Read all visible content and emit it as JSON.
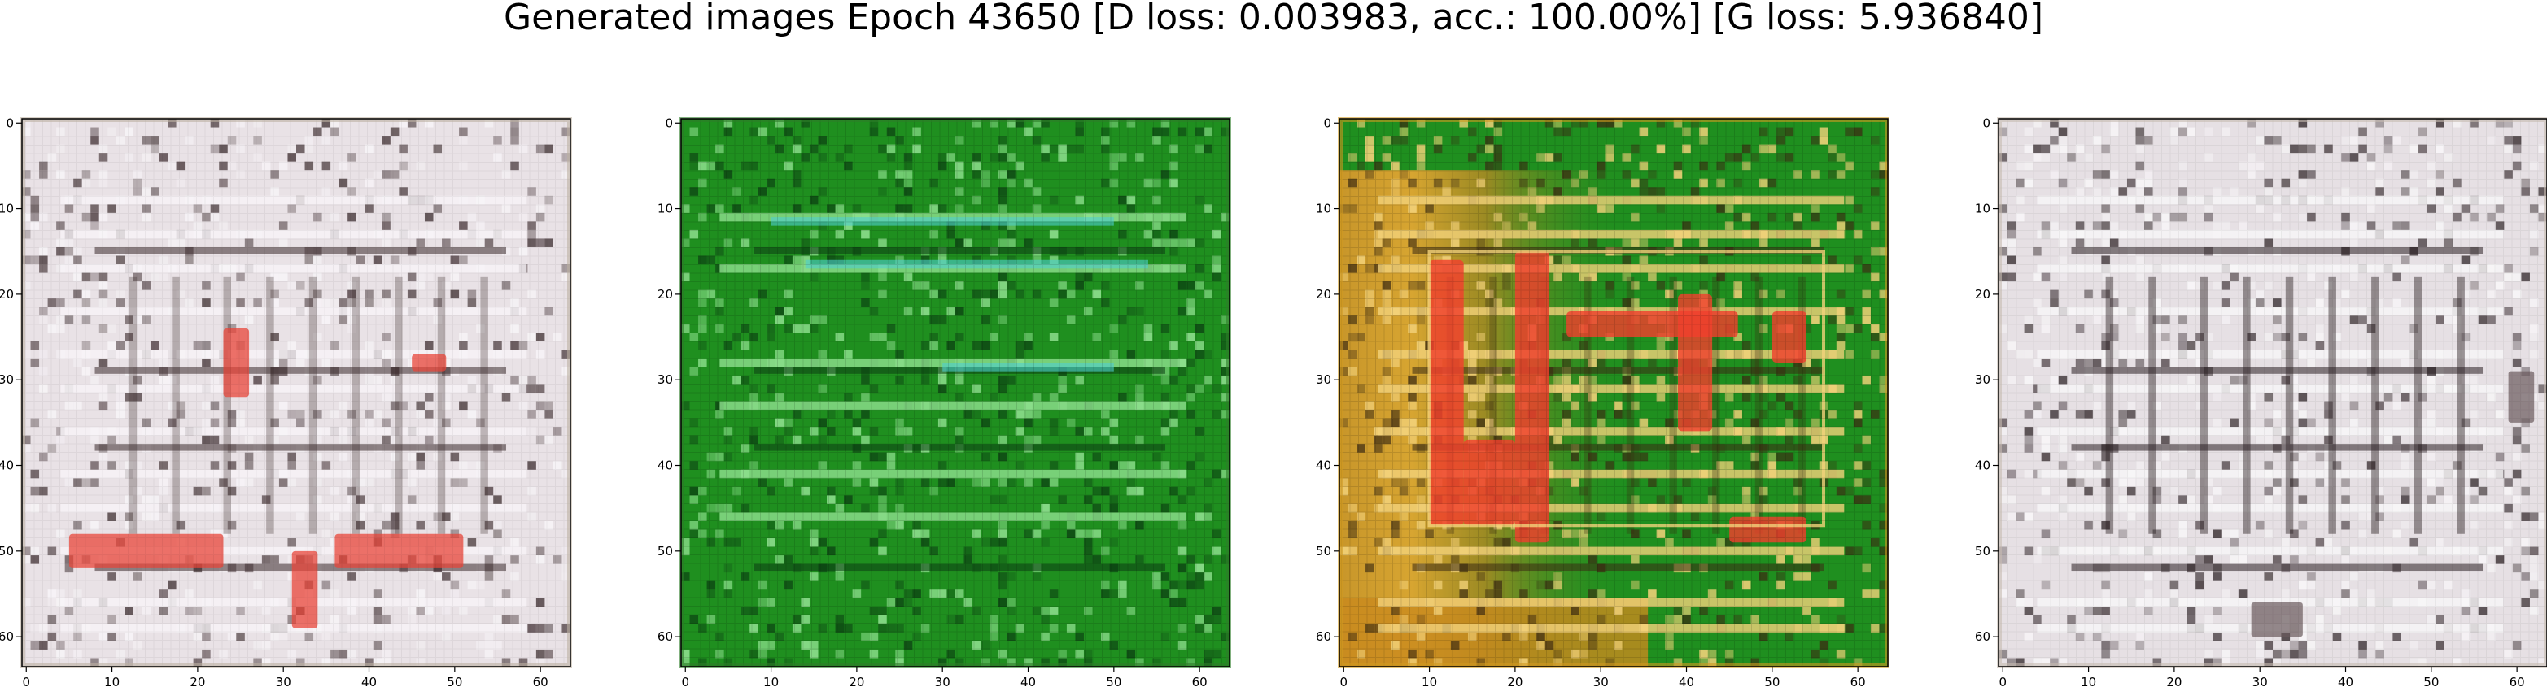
{
  "figure": {
    "title": "Generated images Epoch 43650 [D loss: 0.003983, acc.: 100.00%] [G loss: 5.936840]"
  },
  "chart_data": [
    {
      "type": "image",
      "xlim": [
        -0.5,
        63.5
      ],
      "ylim": [
        63.5,
        -0.5
      ],
      "xticks": [
        0,
        10,
        20,
        30,
        40,
        50,
        60
      ],
      "yticks": [
        0,
        10,
        20,
        30,
        40,
        50,
        60
      ],
      "palette": {
        "base": "#e9e2e6",
        "line": "#f7f4f7",
        "dark": "#3a2a2c",
        "accent": "#e8463a",
        "edge": "#bdb0a2"
      }
    },
    {
      "type": "image",
      "xlim": [
        -0.5,
        63.5
      ],
      "ylim": [
        63.5,
        -0.5
      ],
      "xticks": [
        0,
        10,
        20,
        30,
        40,
        50,
        60
      ],
      "yticks": [
        0,
        10,
        20,
        30,
        40,
        50,
        60
      ],
      "palette": {
        "base": "#1f8f1f",
        "line": "#8fe08f",
        "dark": "#0b3d12",
        "accent": "#4fcfd0",
        "edge": "#2e7d2a"
      }
    },
    {
      "type": "image",
      "xlim": [
        -0.5,
        63.5
      ],
      "ylim": [
        63.5,
        -0.5
      ],
      "xticks": [
        0,
        10,
        20,
        30,
        40,
        50,
        60
      ],
      "yticks": [
        0,
        10,
        20,
        30,
        40,
        50,
        60
      ],
      "palette": {
        "base": "#1f8f1f",
        "line": "#f3d27a",
        "dark": "#3b2a12",
        "accent": "#f0402d",
        "edge": "#d19a1f"
      }
    },
    {
      "type": "image",
      "xlim": [
        -0.5,
        63.5
      ],
      "ylim": [
        63.5,
        -0.5
      ],
      "xticks": [
        0,
        10,
        20,
        30,
        40,
        50,
        60
      ],
      "yticks": [
        0,
        10,
        20,
        30,
        40,
        50,
        60
      ],
      "palette": {
        "base": "#e6e0e4",
        "line": "#f8f6f8",
        "dark": "#2a1f22",
        "accent": "#6a5a5d",
        "edge": "#c7bab0"
      }
    }
  ]
}
